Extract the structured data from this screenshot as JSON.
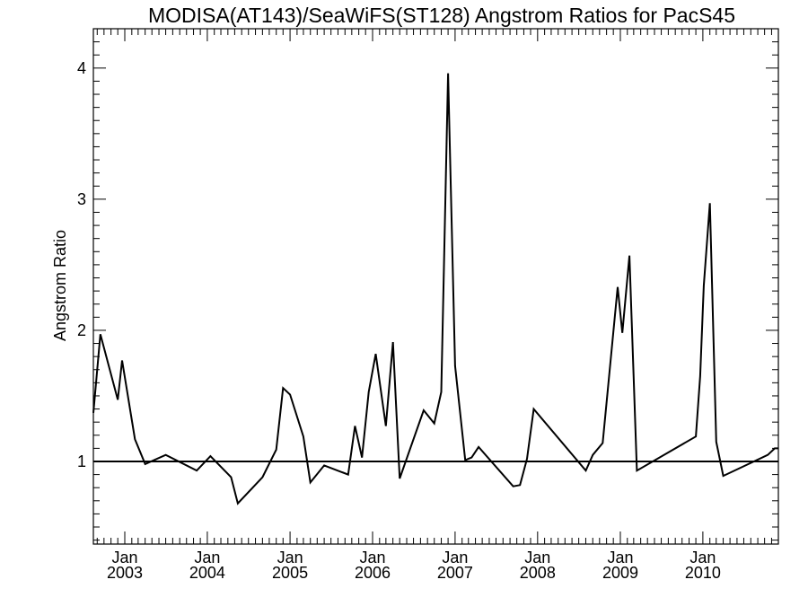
{
  "chart_data": {
    "type": "line",
    "title": "MODISA(AT143)/SeaWiFS(ST128)  Angstrom Ratios for PacS45",
    "xlabel": "",
    "ylabel": "Angstrom Ratio",
    "xlim": [
      "2002-08-15",
      "2010-12-01"
    ],
    "ylim": [
      0.37,
      4.3
    ],
    "y_ticks": [
      1,
      2,
      3,
      4
    ],
    "x_ticks": [
      {
        "date": "2003-01-01",
        "month": "Jan",
        "year": "2003"
      },
      {
        "date": "2004-01-01",
        "month": "Jan",
        "year": "2004"
      },
      {
        "date": "2005-01-01",
        "month": "Jan",
        "year": "2005"
      },
      {
        "date": "2006-01-01",
        "month": "Jan",
        "year": "2006"
      },
      {
        "date": "2007-01-01",
        "month": "Jan",
        "year": "2007"
      },
      {
        "date": "2008-01-01",
        "month": "Jan",
        "year": "2008"
      },
      {
        "date": "2009-01-01",
        "month": "Jan",
        "year": "2009"
      },
      {
        "date": "2010-01-01",
        "month": "Jan",
        "year": "2010"
      }
    ],
    "reference_line": 1,
    "grid": false,
    "series": [
      {
        "x": [
          "2002-08-15",
          "2002-09-15",
          "2002-12-01",
          "2002-12-20",
          "2003-02-15",
          "2003-04-01",
          "2003-07-01",
          "2003-11-15",
          "2004-01-15",
          "2004-04-15",
          "2004-05-15",
          "2004-09-01",
          "2004-11-01",
          "2004-12-01",
          "2005-01-01",
          "2005-03-01",
          "2005-04-01",
          "2005-06-01",
          "2005-09-15",
          "2005-10-15",
          "2005-11-15",
          "2005-12-15",
          "2006-01-15",
          "2006-03-01",
          "2006-04-01",
          "2006-05-01",
          "2006-08-15",
          "2006-10-01",
          "2006-11-01",
          "2006-12-01",
          "2007-01-01",
          "2007-02-15",
          "2007-03-15",
          "2007-04-15",
          "2007-09-15",
          "2007-10-15",
          "2007-11-15",
          "2007-12-15",
          "2008-08-01",
          "2008-09-01",
          "2008-10-15",
          "2008-12-20",
          "2009-01-10",
          "2009-02-10",
          "2009-03-15",
          "2009-12-01",
          "2009-12-20",
          "2010-01-05",
          "2010-02-01",
          "2010-03-01",
          "2010-04-01",
          "2010-10-15",
          "2010-11-15",
          "2010-12-01"
        ],
        "values": [
          1.37,
          1.97,
          1.47,
          1.77,
          1.17,
          0.98,
          1.05,
          0.93,
          1.04,
          0.88,
          0.68,
          0.88,
          1.09,
          1.56,
          1.51,
          1.19,
          0.84,
          0.97,
          0.9,
          1.27,
          1.03,
          1.53,
          1.82,
          1.27,
          1.91,
          0.87,
          1.39,
          1.29,
          1.53,
          3.96,
          1.73,
          1.01,
          1.03,
          1.11,
          0.81,
          0.82,
          1.02,
          1.4,
          0.93,
          1.05,
          1.14,
          2.33,
          1.98,
          2.57,
          0.93,
          1.19,
          1.65,
          2.34,
          2.97,
          1.15,
          0.89,
          1.05,
          1.1,
          1.1
        ]
      }
    ]
  }
}
